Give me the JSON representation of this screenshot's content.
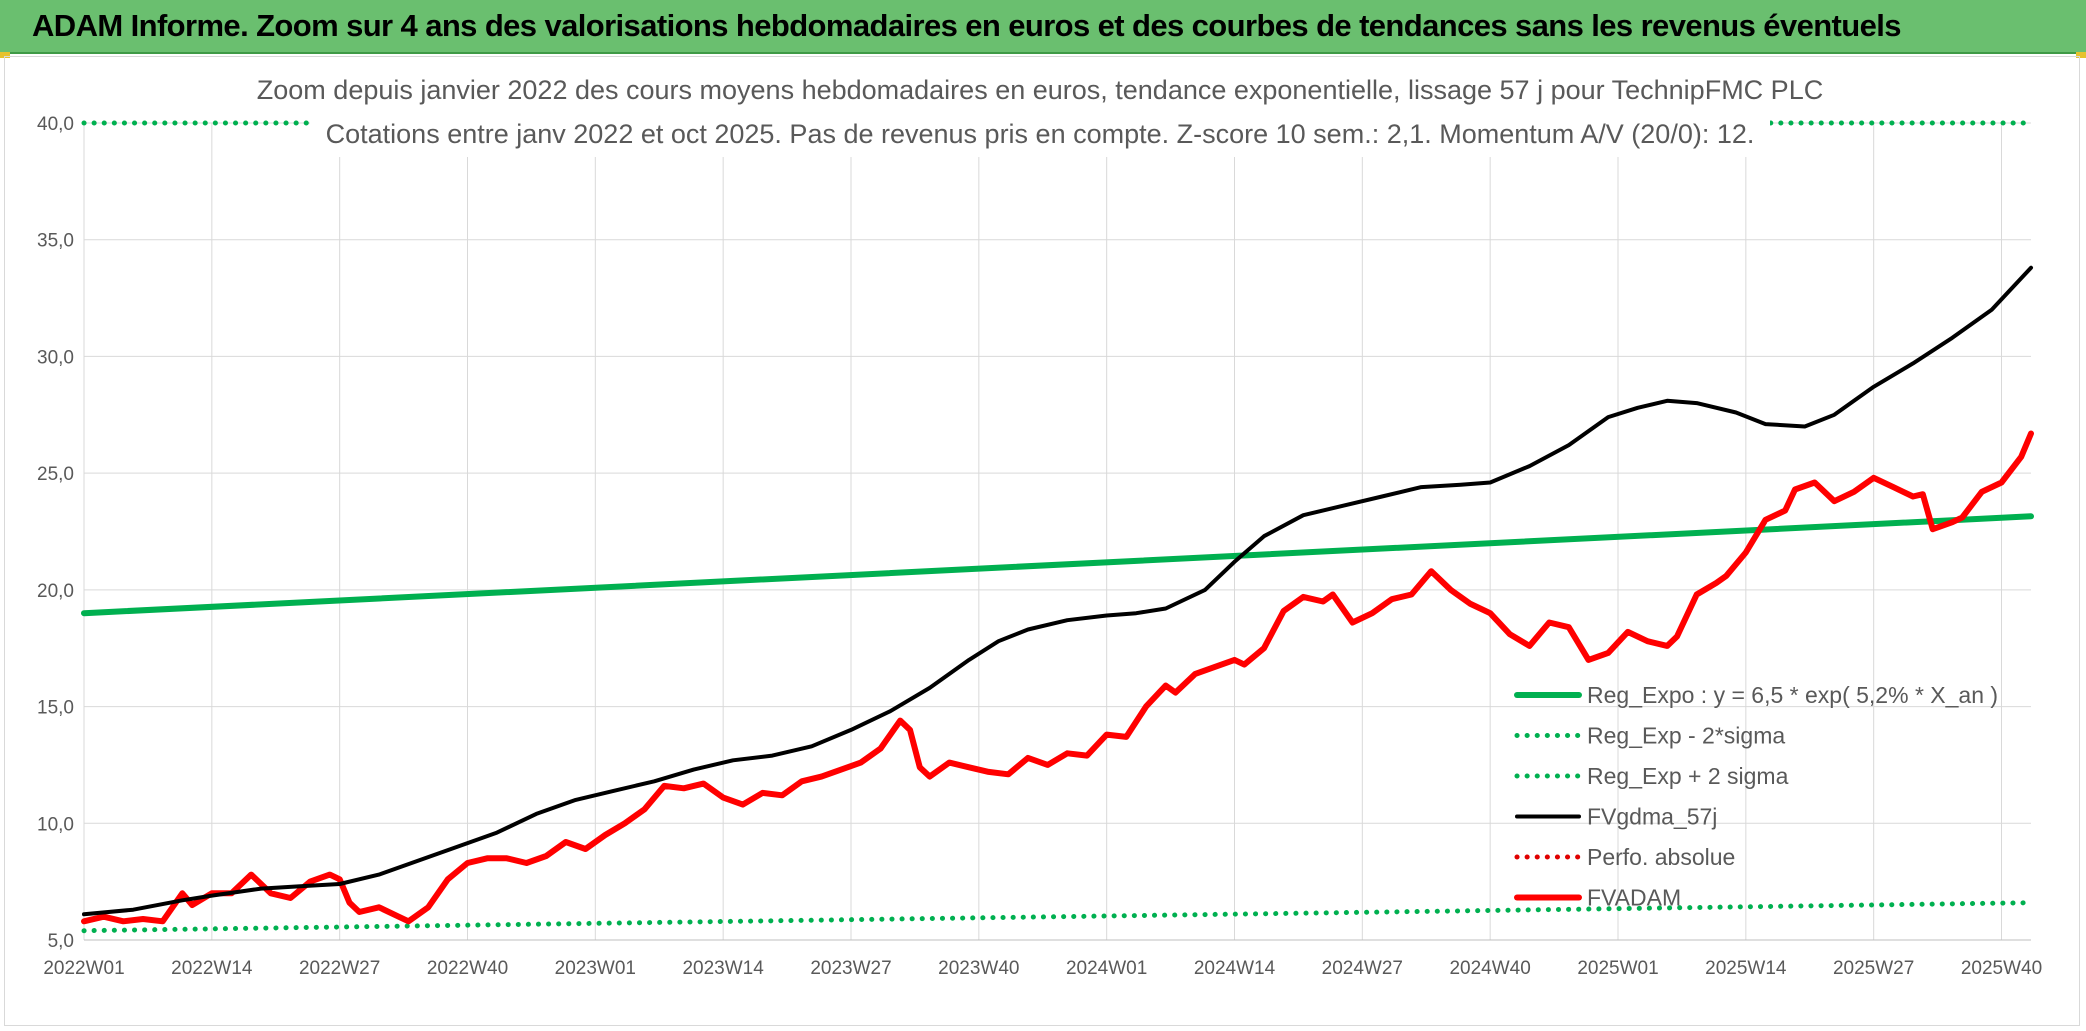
{
  "header": {
    "title": "ADAM Informe. Zoom sur 4 ans des valorisations hebdomadaires en euros et des courbes de tendances sans les revenus éventuels"
  },
  "chart_data": {
    "type": "line",
    "title": "Zoom depuis janvier 2022 des cours moyens hebdomadaires en euros, tendance exponentielle, lissage 57 j pour TechnipFMC PLC",
    "subtitle": "Cotations entre janv 2022 et oct 2025. Pas de revenus pris en compte. Z-score 10 sem.: 2,1. Momentum A/V (20/0): 12.",
    "xlabel": "",
    "ylabel": "",
    "ylim": [
      5,
      40
    ],
    "yticks": [
      "5,0",
      "10,0",
      "15,0",
      "20,0",
      "25,0",
      "30,0",
      "35,0",
      "40,0"
    ],
    "x_range": [
      0,
      198
    ],
    "x_ticks": [
      {
        "label": "2022W01",
        "week": 0
      },
      {
        "label": "2022W14",
        "week": 13
      },
      {
        "label": "2022W27",
        "week": 26
      },
      {
        "label": "2022W40",
        "week": 39
      },
      {
        "label": "2023W01",
        "week": 52
      },
      {
        "label": "2023W14",
        "week": 65
      },
      {
        "label": "2023W27",
        "week": 78
      },
      {
        "label": "2023W40",
        "week": 91
      },
      {
        "label": "2024W01",
        "week": 104
      },
      {
        "label": "2024W14",
        "week": 117
      },
      {
        "label": "2024W27",
        "week": 130
      },
      {
        "label": "2024W40",
        "week": 143
      },
      {
        "label": "2025W01",
        "week": 156
      },
      {
        "label": "2025W14",
        "week": 169
      },
      {
        "label": "2025W27",
        "week": 182
      },
      {
        "label": "2025W40",
        "week": 195
      }
    ],
    "grid": true,
    "legend_position": "bottom-right",
    "legend": [
      {
        "name": "Reg_Expo : y = 6,5 * exp( 5,2% *  X_an )",
        "color": "#00b050",
        "style": "solid-thick"
      },
      {
        "name": "Reg_Exp - 2*sigma",
        "color": "#00b050",
        "style": "dotted"
      },
      {
        "name": "Reg_Exp + 2 sigma",
        "color": "#00b050",
        "style": "dotted"
      },
      {
        "name": "FVgdma_57j",
        "color": "#000000",
        "style": "solid"
      },
      {
        "name": "Perfo. absolue",
        "color": "#e00000",
        "style": "dotted"
      },
      {
        "name": "FVADAM",
        "color": "#ff0000",
        "style": "solid-thick"
      }
    ],
    "series": [
      {
        "name": "Reg_Expo",
        "color": "#00b050",
        "points": [
          [
            0,
            19.0
          ],
          [
            198,
            23.15
          ]
        ]
      },
      {
        "name": "Reg_Exp - 2*sigma",
        "color": "#00b050",
        "points": [
          [
            0,
            5.4
          ],
          [
            198,
            6.6
          ]
        ]
      },
      {
        "name": "Reg_Exp + 2 sigma",
        "color": "#00b050",
        "points": [
          [
            0,
            40.0
          ],
          [
            198,
            40.0
          ]
        ]
      },
      {
        "name": "FVgdma_57j",
        "color": "#000000",
        "points": [
          [
            0,
            6.1
          ],
          [
            5,
            6.3
          ],
          [
            10,
            6.7
          ],
          [
            13,
            6.9
          ],
          [
            18,
            7.2
          ],
          [
            22,
            7.3
          ],
          [
            26,
            7.4
          ],
          [
            30,
            7.8
          ],
          [
            34,
            8.4
          ],
          [
            38,
            9.0
          ],
          [
            42,
            9.6
          ],
          [
            46,
            10.4
          ],
          [
            50,
            11.0
          ],
          [
            54,
            11.4
          ],
          [
            58,
            11.8
          ],
          [
            62,
            12.3
          ],
          [
            66,
            12.7
          ],
          [
            70,
            12.9
          ],
          [
            74,
            13.3
          ],
          [
            78,
            14.0
          ],
          [
            82,
            14.8
          ],
          [
            86,
            15.8
          ],
          [
            90,
            17.0
          ],
          [
            93,
            17.8
          ],
          [
            96,
            18.3
          ],
          [
            100,
            18.7
          ],
          [
            104,
            18.9
          ],
          [
            107,
            19.0
          ],
          [
            110,
            19.2
          ],
          [
            114,
            20.0
          ],
          [
            117,
            21.2
          ],
          [
            120,
            22.3
          ],
          [
            124,
            23.2
          ],
          [
            128,
            23.6
          ],
          [
            132,
            24.0
          ],
          [
            136,
            24.4
          ],
          [
            140,
            24.5
          ],
          [
            143,
            24.6
          ],
          [
            147,
            25.3
          ],
          [
            151,
            26.2
          ],
          [
            155,
            27.4
          ],
          [
            158,
            27.8
          ],
          [
            161,
            28.1
          ],
          [
            164,
            28.0
          ],
          [
            168,
            27.6
          ],
          [
            171,
            27.1
          ],
          [
            175,
            27.0
          ],
          [
            178,
            27.5
          ],
          [
            182,
            28.7
          ],
          [
            186,
            29.7
          ],
          [
            190,
            30.8
          ],
          [
            194,
            32.0
          ],
          [
            198,
            33.8
          ]
        ]
      },
      {
        "name": "FVADAM",
        "color": "#ff0000",
        "points": [
          [
            0,
            5.8
          ],
          [
            2,
            6.0
          ],
          [
            4,
            5.8
          ],
          [
            6,
            5.9
          ],
          [
            8,
            5.8
          ],
          [
            10,
            7.0
          ],
          [
            11,
            6.5
          ],
          [
            13,
            7.0
          ],
          [
            15,
            7.0
          ],
          [
            17,
            7.8
          ],
          [
            19,
            7.0
          ],
          [
            21,
            6.8
          ],
          [
            23,
            7.5
          ],
          [
            25,
            7.8
          ],
          [
            26,
            7.6
          ],
          [
            27,
            6.6
          ],
          [
            28,
            6.2
          ],
          [
            30,
            6.4
          ],
          [
            32,
            6.0
          ],
          [
            33,
            5.8
          ],
          [
            35,
            6.4
          ],
          [
            37,
            7.6
          ],
          [
            39,
            8.3
          ],
          [
            41,
            8.5
          ],
          [
            43,
            8.5
          ],
          [
            45,
            8.3
          ],
          [
            47,
            8.6
          ],
          [
            49,
            9.2
          ],
          [
            51,
            8.9
          ],
          [
            53,
            9.5
          ],
          [
            55,
            10.0
          ],
          [
            57,
            10.6
          ],
          [
            59,
            11.6
          ],
          [
            61,
            11.5
          ],
          [
            63,
            11.7
          ],
          [
            65,
            11.1
          ],
          [
            67,
            10.8
          ],
          [
            69,
            11.3
          ],
          [
            71,
            11.2
          ],
          [
            73,
            11.8
          ],
          [
            75,
            12.0
          ],
          [
            77,
            12.3
          ],
          [
            79,
            12.6
          ],
          [
            81,
            13.2
          ],
          [
            83,
            14.4
          ],
          [
            84,
            14.0
          ],
          [
            85,
            12.4
          ],
          [
            86,
            12.0
          ],
          [
            88,
            12.6
          ],
          [
            90,
            12.4
          ],
          [
            92,
            12.2
          ],
          [
            94,
            12.1
          ],
          [
            96,
            12.8
          ],
          [
            98,
            12.5
          ],
          [
            100,
            13.0
          ],
          [
            102,
            12.9
          ],
          [
            104,
            13.8
          ],
          [
            106,
            13.7
          ],
          [
            108,
            15.0
          ],
          [
            110,
            15.9
          ],
          [
            111,
            15.6
          ],
          [
            113,
            16.4
          ],
          [
            115,
            16.7
          ],
          [
            117,
            17.0
          ],
          [
            118,
            16.8
          ],
          [
            120,
            17.5
          ],
          [
            122,
            19.1
          ],
          [
            124,
            19.7
          ],
          [
            126,
            19.5
          ],
          [
            127,
            19.8
          ],
          [
            129,
            18.6
          ],
          [
            131,
            19.0
          ],
          [
            133,
            19.6
          ],
          [
            135,
            19.8
          ],
          [
            137,
            20.8
          ],
          [
            139,
            20.0
          ],
          [
            141,
            19.4
          ],
          [
            143,
            19.0
          ],
          [
            145,
            18.1
          ],
          [
            147,
            17.6
          ],
          [
            149,
            18.6
          ],
          [
            151,
            18.4
          ],
          [
            153,
            17.0
          ],
          [
            155,
            17.3
          ],
          [
            157,
            18.2
          ],
          [
            159,
            17.8
          ],
          [
            161,
            17.6
          ],
          [
            162,
            18.0
          ],
          [
            164,
            19.8
          ],
          [
            166,
            20.3
          ],
          [
            167,
            20.6
          ],
          [
            169,
            21.6
          ],
          [
            171,
            23.0
          ],
          [
            173,
            23.4
          ],
          [
            174,
            24.3
          ],
          [
            176,
            24.6
          ],
          [
            178,
            23.8
          ],
          [
            180,
            24.2
          ],
          [
            182,
            24.8
          ],
          [
            184,
            24.4
          ],
          [
            186,
            24.0
          ],
          [
            187,
            24.1
          ],
          [
            188,
            22.6
          ],
          [
            190,
            22.9
          ],
          [
            191,
            23.1
          ],
          [
            193,
            24.2
          ],
          [
            195,
            24.6
          ],
          [
            197,
            25.7
          ],
          [
            198,
            26.7
          ]
        ]
      }
    ]
  }
}
